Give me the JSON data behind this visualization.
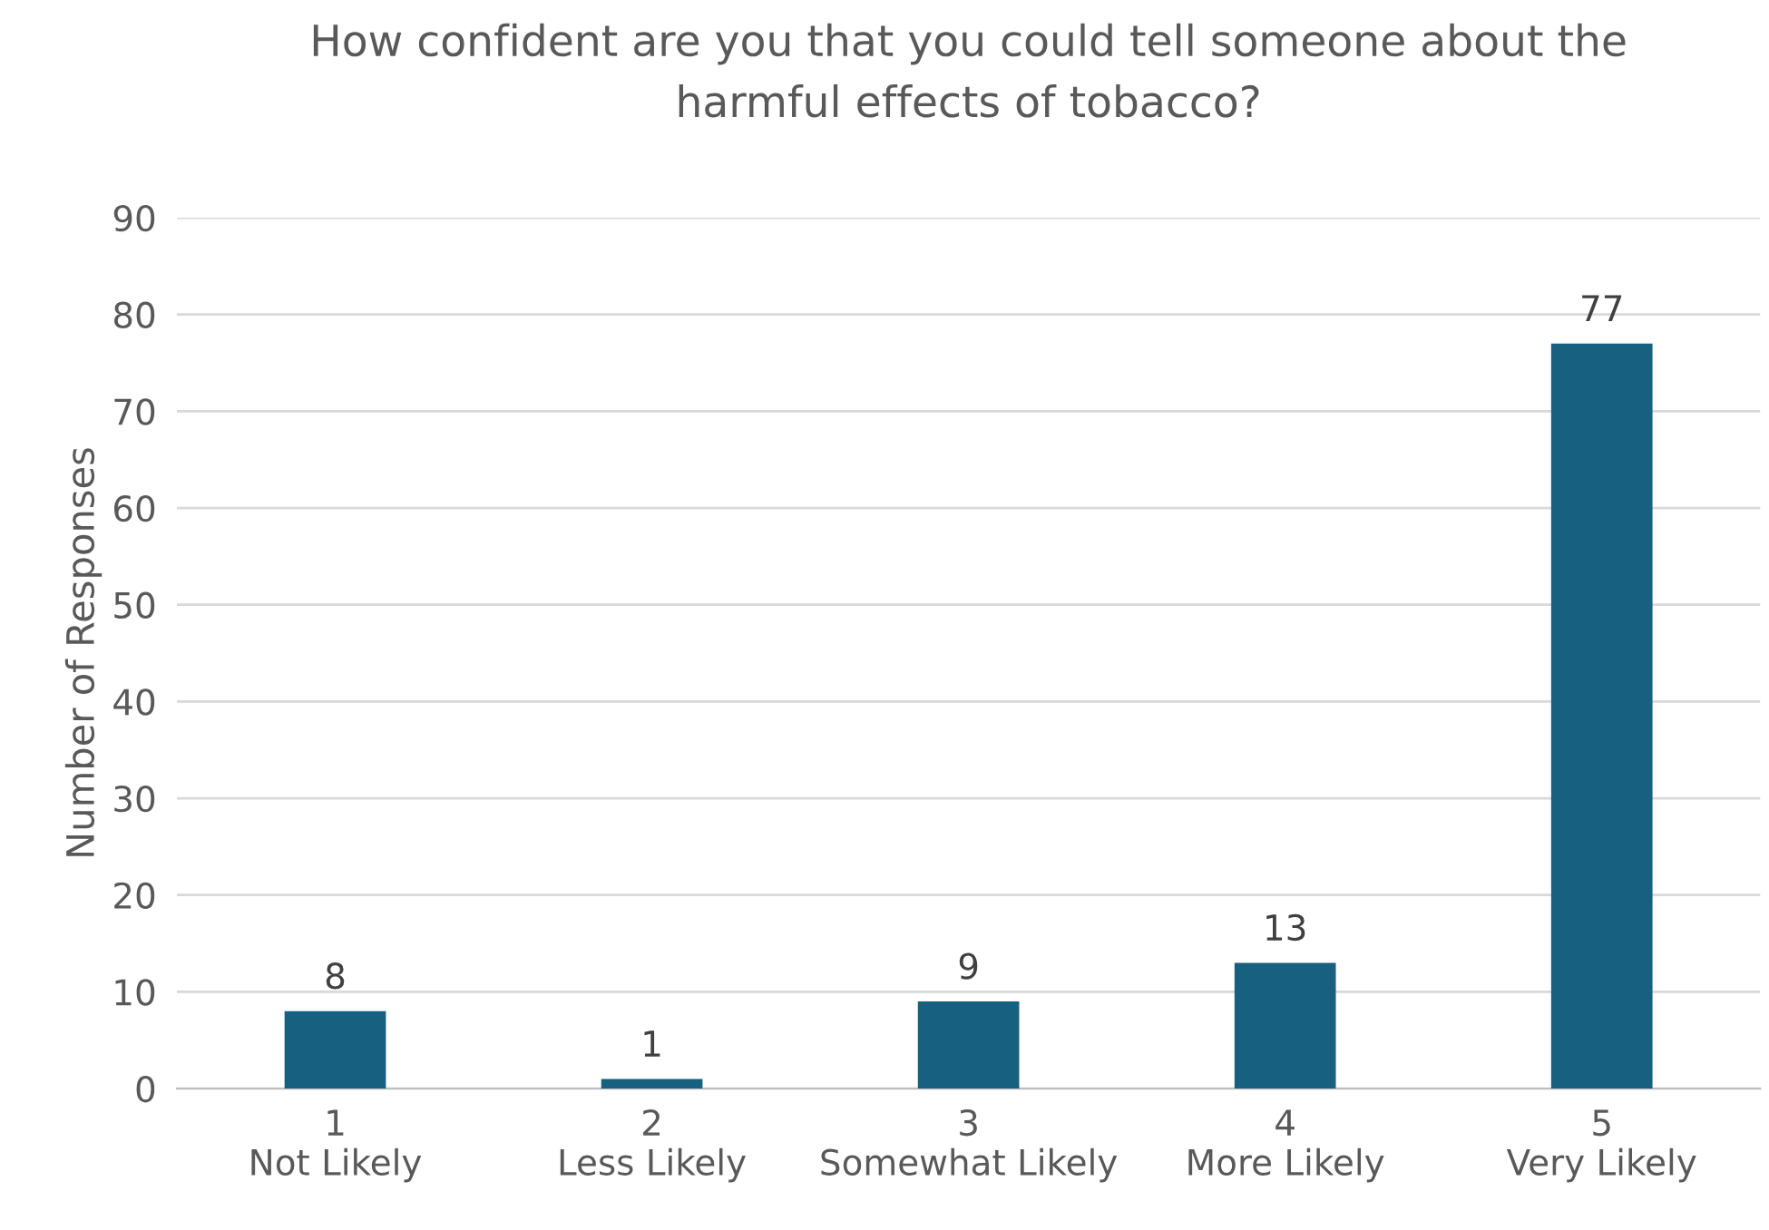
{
  "chart_data": {
    "type": "bar",
    "title": "How confident are you that you could tell someone about the\nharmful effects of tobacco?",
    "ylabel": "Number of Responses",
    "categories": [
      "1\nNot Likely",
      "2\nLess Likely",
      "3\nSomewhat Likely",
      "4\nMore Likely",
      "5\nVery Likely"
    ],
    "values": [
      8,
      1,
      9,
      13,
      77
    ],
    "color": "#18607f",
    "ylim": [
      0,
      90
    ],
    "yticks": [
      0,
      10,
      20,
      30,
      40,
      50,
      60,
      70,
      80,
      90
    ],
    "grid": "y",
    "data_labels": true,
    "legend": false
  }
}
